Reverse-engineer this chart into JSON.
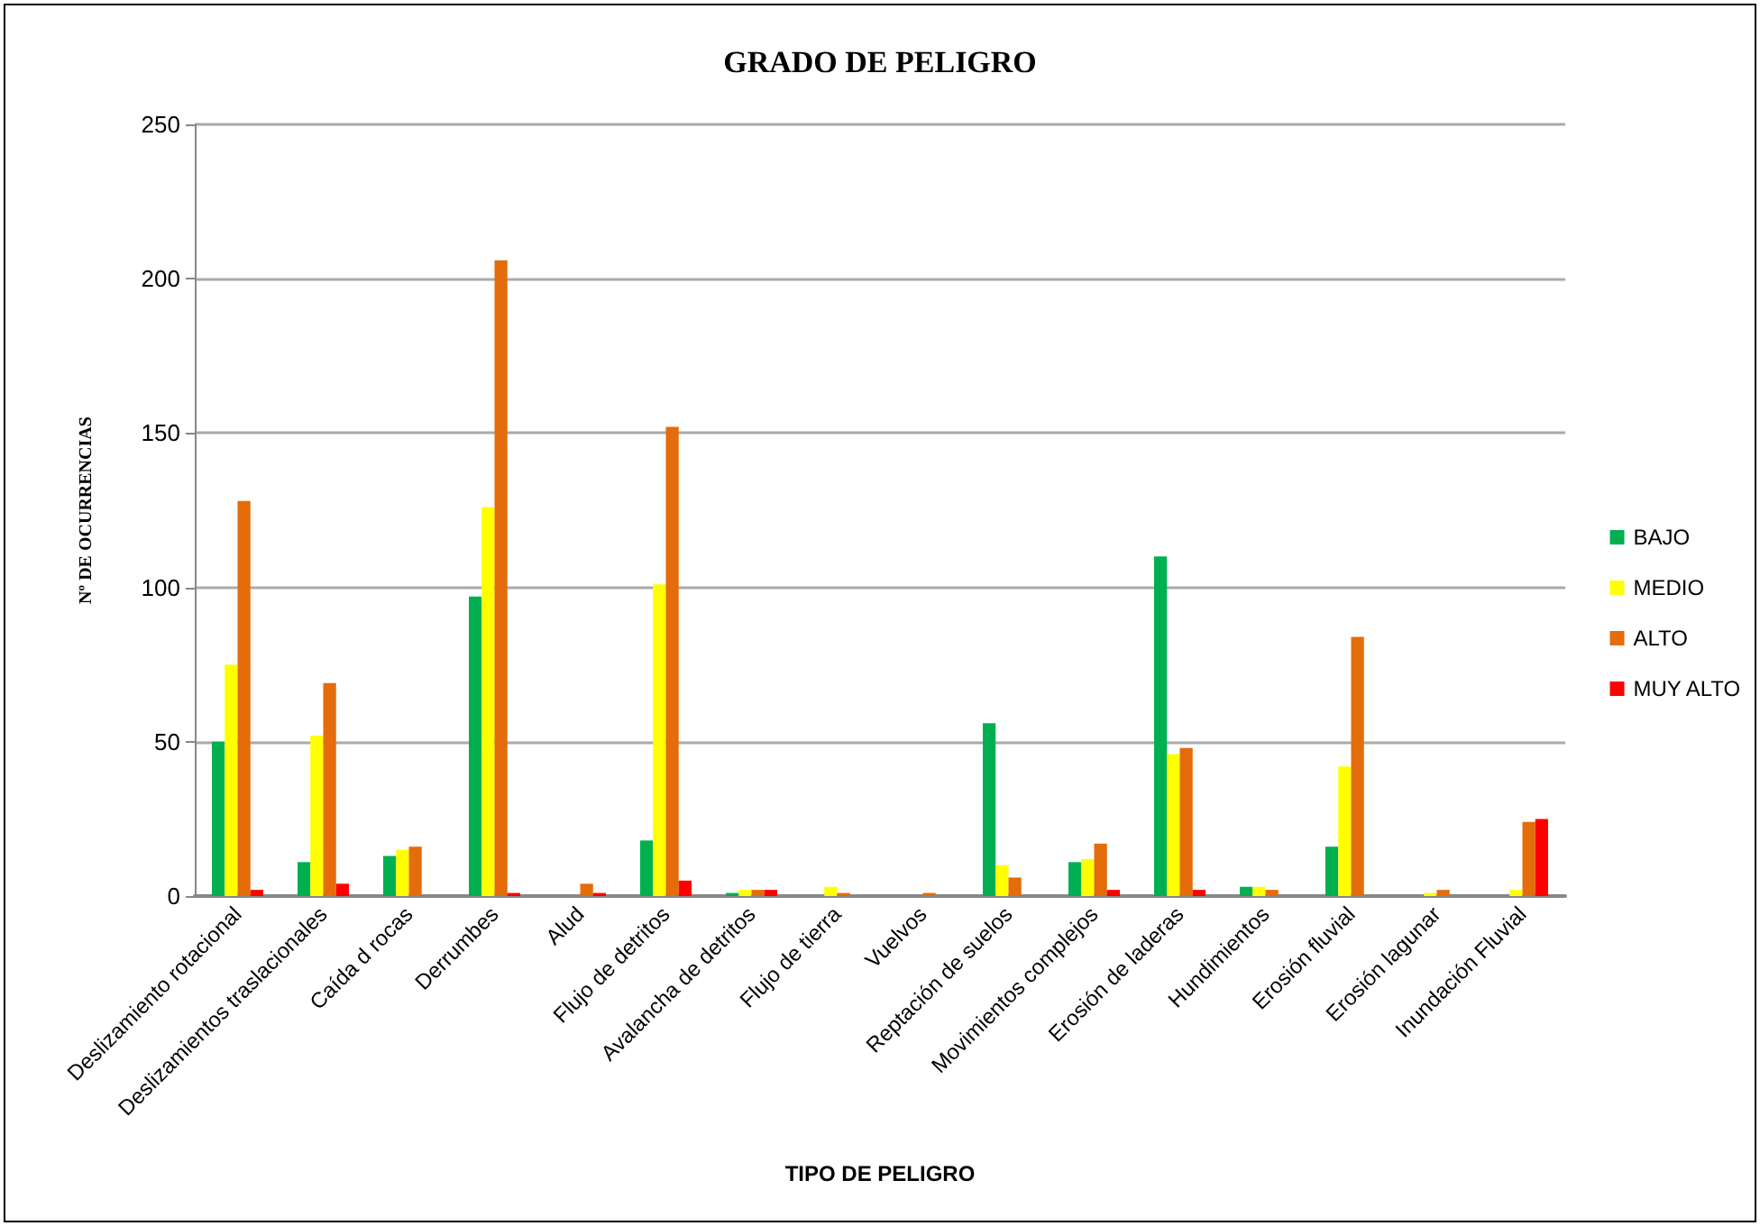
{
  "chart_data": {
    "type": "bar",
    "title": "GRADO DE PELIGRO",
    "xlabel": "TIPO DE PELIGRO",
    "ylabel": "Nº DE OCURRENCIAS",
    "categories": [
      "Deslizamiento rotacional",
      "Deslizamientos traslacionales",
      "Caída d rocas",
      "Derrumbes",
      "Alud",
      "Flujo de detritos",
      "Avalancha de detritos",
      "Flujo de tierra",
      "Vuelvos",
      "Reptación de suelos",
      "Movimientos complejos",
      "Erosión de laderas",
      "Hundimientos",
      "Erosión fluvial",
      "Erosión lagunar",
      "Inundación Fluvial"
    ],
    "series": [
      {
        "name": "BAJO",
        "color": "#00b050",
        "values": [
          50,
          11,
          13,
          97,
          0,
          18,
          1,
          0,
          0,
          56,
          11,
          110,
          3,
          16,
          0,
          0
        ]
      },
      {
        "name": "MEDIO",
        "color": "#ffff00",
        "values": [
          75,
          52,
          15,
          126,
          0,
          101,
          2,
          3,
          0,
          10,
          12,
          46,
          3,
          42,
          1,
          2
        ]
      },
      {
        "name": "ALTO",
        "color": "#e46c0a",
        "values": [
          128,
          69,
          16,
          206,
          4,
          152,
          2,
          1,
          1,
          6,
          17,
          48,
          2,
          84,
          2,
          24
        ]
      },
      {
        "name": "MUY ALTO",
        "color": "#ff0000",
        "values": [
          2,
          4,
          0,
          1,
          1,
          5,
          2,
          0,
          0,
          0,
          2,
          2,
          0,
          0,
          0,
          25
        ]
      }
    ],
    "ylim": [
      0,
      250
    ],
    "yticks": [
      0,
      50,
      100,
      150,
      200,
      250
    ],
    "grid": "y",
    "legend": "right"
  }
}
